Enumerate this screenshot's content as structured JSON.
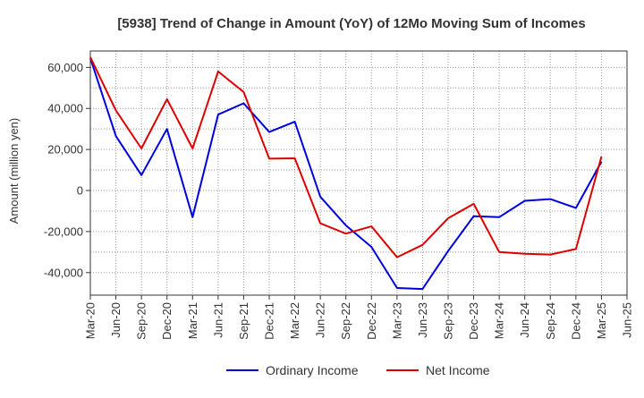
{
  "chart_data": {
    "type": "line",
    "title": "[5938]  Trend of Change in Amount (YoY) of 12Mo Moving Sum of Incomes",
    "ylabel": "Amount (million yen)",
    "xlabel": "",
    "x": [
      "Mar-20",
      "Jun-20",
      "Sep-20",
      "Dec-20",
      "Mar-21",
      "Jun-21",
      "Sep-21",
      "Dec-21",
      "Mar-22",
      "Jun-22",
      "Sep-22",
      "Dec-22",
      "Mar-23",
      "Jun-23",
      "Sep-23",
      "Dec-23",
      "Mar-24",
      "Jun-24",
      "Sep-24",
      "Dec-24",
      "Mar-25",
      "Jun-25"
    ],
    "yticks": [
      -40000,
      -20000,
      0,
      20000,
      40000,
      60000
    ],
    "ytick_labels": [
      "-40,000",
      "-20,000",
      "0",
      "20,000",
      "40,000",
      "60,000"
    ],
    "ylim": [
      -51000,
      68000
    ],
    "grid": true,
    "legend_position": "bottom",
    "series": [
      {
        "name": "Ordinary Income",
        "color": "#0000dd",
        "values": [
          64500,
          26500,
          7500,
          30000,
          -13000,
          37000,
          42500,
          28500,
          33500,
          -3000,
          -17000,
          -27500,
          -47500,
          -48000,
          -29500,
          -12500,
          -13000,
          -5000,
          -4200,
          -8500,
          14000,
          null
        ]
      },
      {
        "name": "Net Income",
        "color": "#dd0000",
        "values": [
          65000,
          39000,
          20500,
          44500,
          20500,
          58000,
          48000,
          15500,
          15700,
          -16000,
          -21000,
          -17500,
          -32500,
          -26500,
          -13500,
          -6500,
          -30000,
          -30800,
          -31200,
          -28500,
          16500,
          null
        ]
      }
    ]
  }
}
